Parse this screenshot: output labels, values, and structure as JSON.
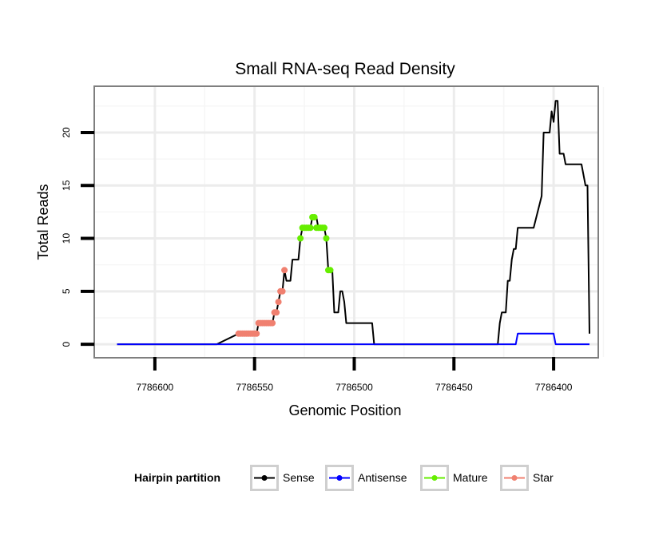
{
  "chart_data": {
    "type": "line",
    "title": "Small RNA-seq Read Density",
    "xlabel": "Genomic Position",
    "ylabel": "Total Reads",
    "x_reversed": true,
    "xlim": [
      7786630,
      7786378
    ],
    "ylim": [
      -1.2,
      24.3
    ],
    "x_ticks": [
      7786600,
      7786550,
      7786500,
      7786450,
      7786400
    ],
    "y_ticks": [
      0,
      5,
      10,
      15,
      20
    ],
    "grid": true,
    "legend": {
      "title": "Hairpin partition",
      "position": "bottom",
      "entries": [
        {
          "name": "Sense",
          "color": "#000000"
        },
        {
          "name": "Antisense",
          "color": "#0000ff"
        },
        {
          "name": "Mature",
          "color": "#66ee00"
        },
        {
          "name": "Star",
          "color": "#f08070"
        }
      ]
    },
    "series": [
      {
        "name": "Sense",
        "color": "#000000",
        "style": "line",
        "points": [
          [
            7786619,
            0
          ],
          [
            7786569,
            0
          ],
          [
            7786558,
            1
          ],
          [
            7786556,
            1
          ],
          [
            7786555,
            1
          ],
          [
            7786549,
            1
          ],
          [
            7786548,
            2
          ],
          [
            7786541,
            2
          ],
          [
            7786540,
            3
          ],
          [
            7786539,
            3
          ],
          [
            7786538,
            4
          ],
          [
            7786537,
            5
          ],
          [
            7786536,
            5
          ],
          [
            7786535,
            7
          ],
          [
            7786534,
            6
          ],
          [
            7786532,
            6
          ],
          [
            7786531,
            8
          ],
          [
            7786528,
            8
          ],
          [
            7786527,
            10
          ],
          [
            7786526,
            11
          ],
          [
            7786522,
            11
          ],
          [
            7786521,
            12
          ],
          [
            7786519,
            12
          ],
          [
            7786518,
            11
          ],
          [
            7786515,
            11
          ],
          [
            7786514,
            10
          ],
          [
            7786513,
            7
          ],
          [
            7786511,
            7
          ],
          [
            7786510,
            3
          ],
          [
            7786508,
            3
          ],
          [
            7786507,
            5
          ],
          [
            7786506,
            5
          ],
          [
            7786505,
            4
          ],
          [
            7786504,
            2
          ],
          [
            7786491,
            2
          ],
          [
            7786490,
            0
          ],
          [
            7786428,
            0
          ],
          [
            7786427,
            2
          ],
          [
            7786426,
            3
          ],
          [
            7786424,
            3
          ],
          [
            7786423,
            6
          ],
          [
            7786422,
            6
          ],
          [
            7786421,
            8
          ],
          [
            7786420,
            9
          ],
          [
            7786419,
            9
          ],
          [
            7786418,
            11
          ],
          [
            7786410,
            11
          ],
          [
            7786406,
            14
          ],
          [
            7786405,
            20
          ],
          [
            7786402,
            20
          ],
          [
            7786401,
            22
          ],
          [
            7786400,
            21
          ],
          [
            7786399,
            23
          ],
          [
            7786398,
            23
          ],
          [
            7786397,
            18
          ],
          [
            7786395,
            18
          ],
          [
            7786394,
            17
          ],
          [
            7786386,
            17
          ],
          [
            7786384,
            15
          ],
          [
            7786383,
            15
          ],
          [
            7786382,
            1
          ]
        ]
      },
      {
        "name": "Antisense",
        "color": "#0000ff",
        "style": "line",
        "points": [
          [
            7786619,
            0
          ],
          [
            7786419,
            0
          ],
          [
            7786418,
            1
          ],
          [
            7786400,
            1
          ],
          [
            7786399,
            0
          ],
          [
            7786382,
            0
          ]
        ]
      },
      {
        "name": "Mature",
        "color": "#66ee00",
        "style": "points",
        "points": [
          [
            7786527,
            10
          ],
          [
            7786526,
            11
          ],
          [
            7786525,
            11
          ],
          [
            7786524,
            11
          ],
          [
            7786523,
            11
          ],
          [
            7786522,
            11
          ],
          [
            7786521,
            12
          ],
          [
            7786520,
            12
          ],
          [
            7786519,
            11
          ],
          [
            7786518,
            11
          ],
          [
            7786517,
            11
          ],
          [
            7786516,
            11
          ],
          [
            7786515,
            11
          ],
          [
            7786514,
            10
          ],
          [
            7786513,
            7
          ],
          [
            7786512,
            7
          ]
        ]
      },
      {
        "name": "Star",
        "color": "#f08070",
        "style": "points",
        "points": [
          [
            7786558,
            1
          ],
          [
            7786557,
            1
          ],
          [
            7786556,
            1
          ],
          [
            7786555,
            1
          ],
          [
            7786554,
            1
          ],
          [
            7786553,
            1
          ],
          [
            7786552,
            1
          ],
          [
            7786551,
            1
          ],
          [
            7786550,
            1
          ],
          [
            7786549,
            1
          ],
          [
            7786548,
            2
          ],
          [
            7786547,
            2
          ],
          [
            7786546,
            2
          ],
          [
            7786545,
            2
          ],
          [
            7786544,
            2
          ],
          [
            7786543,
            2
          ],
          [
            7786542,
            2
          ],
          [
            7786541,
            2
          ],
          [
            7786540,
            3
          ],
          [
            7786539,
            3
          ],
          [
            7786538,
            4
          ],
          [
            7786537,
            5
          ],
          [
            7786536,
            5
          ],
          [
            7786535,
            7
          ]
        ]
      }
    ]
  }
}
